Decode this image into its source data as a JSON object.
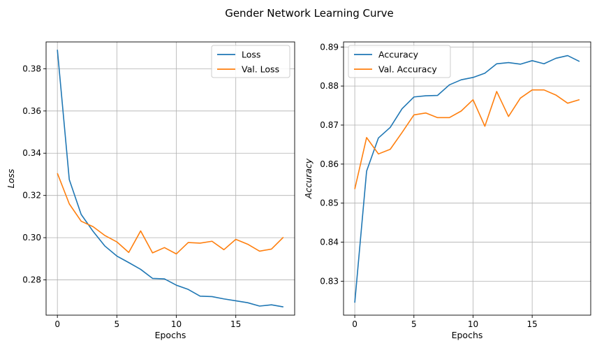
{
  "figure": {
    "title": "Gender Network Learning Curve"
  },
  "chart_data": [
    {
      "type": "line",
      "xlabel": "Epochs",
      "ylabel": "Loss",
      "xlim": [
        -0.95,
        19.95
      ],
      "ylim": [
        0.2633,
        0.3927
      ],
      "xticks": [
        0,
        5,
        10,
        15
      ],
      "yticks": [
        0.28,
        0.3,
        0.32,
        0.34,
        0.36,
        0.38
      ],
      "ytick_labels": [
        "0.28",
        "0.30",
        "0.32",
        "0.34",
        "0.36",
        "0.38"
      ],
      "grid": true,
      "legend": "upper-right",
      "x": [
        0,
        1,
        2,
        3,
        4,
        5,
        6,
        7,
        8,
        9,
        10,
        11,
        12,
        13,
        14,
        15,
        16,
        17,
        18,
        19
      ],
      "series": [
        {
          "name": "Loss",
          "color": "#1f77b4",
          "values": [
            0.389,
            0.3275,
            0.311,
            0.303,
            0.296,
            0.2913,
            0.2882,
            0.285,
            0.2807,
            0.2805,
            0.2775,
            0.2755,
            0.2723,
            0.2721,
            0.271,
            0.2701,
            0.2692,
            0.2676,
            0.2682,
            0.2672
          ]
        },
        {
          "name": "Val. Loss",
          "color": "#ff7f0e",
          "values": [
            0.3305,
            0.316,
            0.3078,
            0.3052,
            0.301,
            0.298,
            0.293,
            0.3032,
            0.2928,
            0.2953,
            0.2923,
            0.2977,
            0.2974,
            0.2983,
            0.2943,
            0.2992,
            0.2969,
            0.2936,
            0.2946,
            0.3002
          ]
        }
      ]
    },
    {
      "type": "line",
      "xlabel": "Epochs",
      "ylabel": "Accuracy",
      "xlim": [
        -0.95,
        19.95
      ],
      "ylim": [
        0.8213,
        0.8913
      ],
      "xticks": [
        0,
        5,
        10,
        15
      ],
      "yticks": [
        0.83,
        0.84,
        0.85,
        0.86,
        0.87,
        0.88,
        0.89
      ],
      "ytick_labels": [
        "0.83",
        "0.84",
        "0.85",
        "0.86",
        "0.87",
        "0.88",
        "0.89"
      ],
      "grid": true,
      "legend": "upper-left",
      "x": [
        0,
        1,
        2,
        3,
        4,
        5,
        6,
        7,
        8,
        9,
        10,
        11,
        12,
        13,
        14,
        15,
        16,
        17,
        18,
        19
      ],
      "series": [
        {
          "name": "Accuracy",
          "color": "#1f77b4",
          "values": [
            0.8245,
            0.8582,
            0.8667,
            0.8694,
            0.8742,
            0.8772,
            0.8775,
            0.8776,
            0.8803,
            0.8816,
            0.8822,
            0.8833,
            0.8857,
            0.886,
            0.8856,
            0.8865,
            0.8857,
            0.8871,
            0.8878,
            0.8863
          ]
        },
        {
          "name": "Val. Accuracy",
          "color": "#ff7f0e",
          "values": [
            0.8536,
            0.8668,
            0.8626,
            0.8638,
            0.8681,
            0.8726,
            0.8731,
            0.8719,
            0.8719,
            0.8736,
            0.8765,
            0.8697,
            0.8786,
            0.8722,
            0.8769,
            0.879,
            0.879,
            0.8777,
            0.8756,
            0.8765
          ]
        }
      ]
    }
  ]
}
